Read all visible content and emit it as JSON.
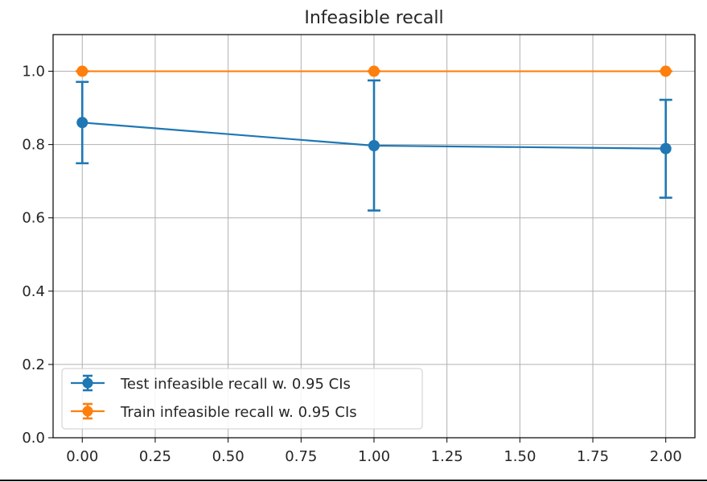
{
  "chart_data": {
    "type": "line",
    "title": "Infeasible recall",
    "xlabel": "",
    "ylabel": "",
    "xlim": [
      -0.1,
      2.1
    ],
    "ylim": [
      0.0,
      1.1
    ],
    "xticks": [
      "0.00",
      "0.25",
      "0.50",
      "0.75",
      "1.00",
      "1.25",
      "1.50",
      "1.75",
      "2.00"
    ],
    "xtick_values": [
      0,
      0.25,
      0.5,
      0.75,
      1.0,
      1.25,
      1.5,
      1.75,
      2.0
    ],
    "yticks": [
      "0.0",
      "0.2",
      "0.4",
      "0.6",
      "0.8",
      "1.0"
    ],
    "ytick_values": [
      0,
      0.2,
      0.4,
      0.6,
      0.8,
      1.0
    ],
    "grid": true,
    "legend_position": "lower-left",
    "x": [
      0,
      1,
      2
    ],
    "series": [
      {
        "name": "Test infeasible recall w. 0.95 CIs",
        "color": "#1f77b4",
        "values": [
          0.86,
          0.797,
          0.789
        ],
        "ci_lower": [
          0.749,
          0.62,
          0.655
        ],
        "ci_upper": [
          0.971,
          0.975,
          0.922
        ]
      },
      {
        "name": "Train infeasible recall w. 0.95 CIs",
        "color": "#ff7f0e",
        "values": [
          1.0,
          1.0,
          1.0
        ],
        "ci_lower": [
          1.0,
          1.0,
          1.0
        ],
        "ci_upper": [
          1.0,
          1.0,
          1.0
        ]
      }
    ]
  }
}
